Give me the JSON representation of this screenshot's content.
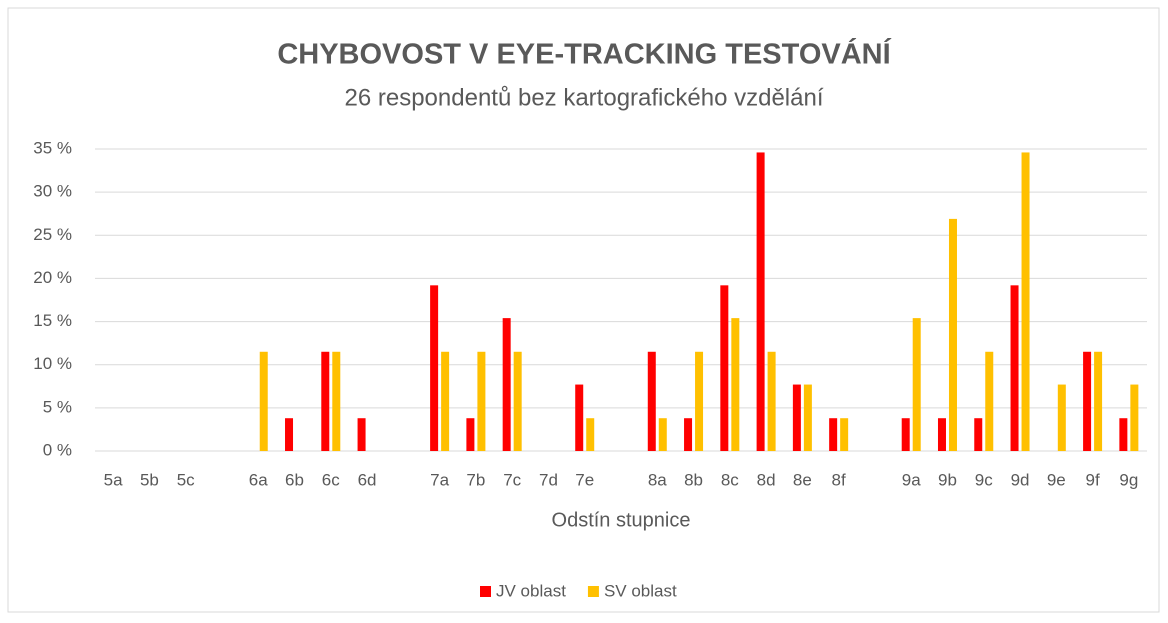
{
  "chart_data": {
    "type": "bar",
    "title": "CHYBOVOST V EYE-TRACKING TESTOVÁNÍ",
    "subtitle": "26 respondentů bez kartografického vzdělání",
    "x_label": "Odstín stupnice",
    "categories": [
      "5a",
      "5b",
      "5c",
      null,
      "6a",
      "6b",
      "6c",
      "6d",
      null,
      "7a",
      "7b",
      "7c",
      "7d",
      "7e",
      null,
      "8a",
      "8b",
      "8c",
      "8d",
      "8e",
      "8f",
      null,
      "9a",
      "9b",
      "9c",
      "9d",
      "9e",
      "9f",
      "9g"
    ],
    "series": [
      {
        "name": "JV oblast",
        "color": "#ff0000",
        "values": [
          0,
          0,
          0,
          null,
          0,
          3.8,
          11.5,
          3.8,
          null,
          19.2,
          3.8,
          15.4,
          0,
          7.7,
          null,
          11.5,
          3.8,
          19.2,
          34.6,
          7.7,
          3.8,
          null,
          3.8,
          3.8,
          3.8,
          19.2,
          0,
          11.5,
          3.8
        ]
      },
      {
        "name": "SV oblast",
        "color": "#ffc000",
        "values": [
          0,
          0,
          0,
          null,
          11.5,
          0,
          11.5,
          0,
          null,
          11.5,
          11.5,
          11.5,
          0,
          3.8,
          null,
          3.8,
          11.5,
          15.4,
          11.5,
          7.7,
          3.8,
          null,
          15.4,
          26.9,
          11.5,
          34.6,
          7.7,
          11.5,
          7.7
        ]
      }
    ],
    "ylim": [
      0,
      35
    ],
    "yticks": [
      {
        "value": 0,
        "label": "0 %"
      },
      {
        "value": 5,
        "label": "5 %"
      },
      {
        "value": 10,
        "label": "10 %"
      },
      {
        "value": 15,
        "label": "15 %"
      },
      {
        "value": 20,
        "label": "20 %"
      },
      {
        "value": 25,
        "label": "25 %"
      },
      {
        "value": 30,
        "label": "30 %"
      },
      {
        "value": 35,
        "label": "35 %"
      }
    ],
    "grid": true,
    "legend": "bottom"
  }
}
